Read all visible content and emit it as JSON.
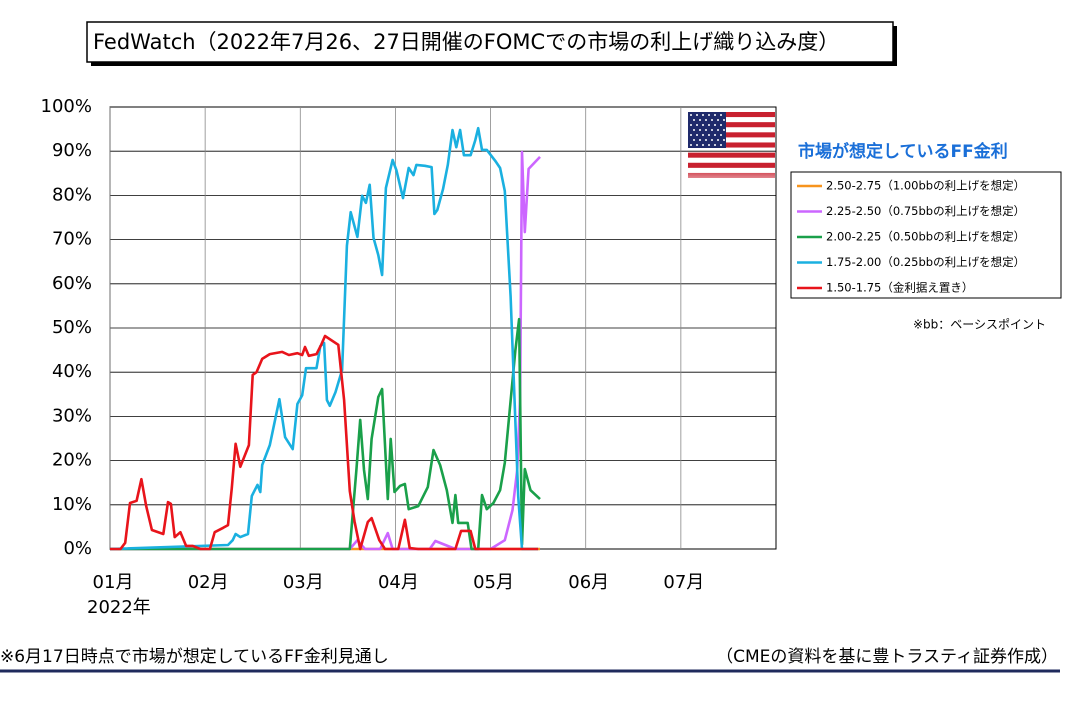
{
  "chart_data": {
    "type": "line",
    "title": "FedWatch（2022年7月26、27日開催のFOMCでの市場の利上げ織り込み度）",
    "legend_title": "市場が想定しているFF金利",
    "legend_note": "※bb：ベーシスポイント",
    "x_year_label": "2022年",
    "footnote": "※6月17日時点で市場が想定しているFF金利見通し",
    "source": "（CMEの資料を基に豊トラスティ証券作成）",
    "xlim": [
      1,
      8
    ],
    "xticks": [
      {
        "value": 1,
        "label": "01月"
      },
      {
        "value": 2,
        "label": "02月"
      },
      {
        "value": 3,
        "label": "03月"
      },
      {
        "value": 4,
        "label": "04月"
      },
      {
        "value": 5,
        "label": "05月"
      },
      {
        "value": 6,
        "label": "06月"
      },
      {
        "value": 7,
        "label": "07月"
      }
    ],
    "ylim": [
      0,
      100
    ],
    "yticks": [
      {
        "value": 0,
        "label": "0%"
      },
      {
        "value": 10,
        "label": "10%"
      },
      {
        "value": 20,
        "label": "20%"
      },
      {
        "value": 30,
        "label": "30%"
      },
      {
        "value": 40,
        "label": "40%"
      },
      {
        "value": 50,
        "label": "50%"
      },
      {
        "value": 60,
        "label": "60%"
      },
      {
        "value": 70,
        "label": "70%"
      },
      {
        "value": 80,
        "label": "80%"
      },
      {
        "value": 90,
        "label": "90%"
      },
      {
        "value": 100,
        "label": "100%"
      }
    ],
    "grid": true,
    "legend": "right",
    "series": [
      {
        "name": "2.50-2.75（1.00bbの利上げを想定）",
        "color": "#f7941d",
        "x": [
          1.0,
          5.52
        ],
        "values": [
          0,
          0
        ]
      },
      {
        "name": "2.25-2.50（0.75bbの利上げを想定）",
        "color": "#cc66ff",
        "x": [
          1.0,
          3.52,
          3.6,
          3.68,
          3.84,
          3.92,
          3.97,
          4.36,
          4.42,
          4.63,
          5.0,
          5.15,
          5.23,
          5.28,
          5.31,
          5.33,
          5.36,
          5.4,
          5.52
        ],
        "values": [
          0,
          0,
          2.0,
          0,
          0,
          3.6,
          0,
          0,
          1.8,
          0,
          0,
          2.0,
          8.8,
          17.9,
          33.9,
          89.8,
          71.7,
          86.0,
          88.7
        ]
      },
      {
        "name": "2.00-2.25（0.50bbの利上げを想定）",
        "color": "#1aa04a",
        "x": [
          1.0,
          3.52,
          3.59,
          3.63,
          3.67,
          3.71,
          3.75,
          3.82,
          3.86,
          3.92,
          3.95,
          3.99,
          4.05,
          4.1,
          4.14,
          4.24,
          4.34,
          4.4,
          4.47,
          4.54,
          4.6,
          4.63,
          4.66,
          4.76,
          4.8,
          4.87,
          4.91,
          4.96,
          5.03,
          5.1,
          5.15,
          5.21,
          5.26,
          5.3,
          5.33,
          5.36,
          5.42,
          5.52
        ],
        "values": [
          0,
          0,
          17.9,
          29.2,
          17.9,
          11.3,
          24.9,
          34.4,
          36.2,
          11.3,
          24.9,
          12.9,
          14.3,
          14.7,
          9.0,
          9.7,
          14.0,
          22.4,
          19.0,
          13.3,
          5.9,
          12.2,
          5.9,
          5.9,
          0,
          0,
          12.2,
          9.0,
          10.4,
          13.3,
          19.5,
          33.5,
          44.8,
          52.0,
          1,
          18.1,
          13.3,
          11.3
        ]
      },
      {
        "name": "1.75-2.00（0.25bbの利上げを想定）",
        "color": "#1ab0e0",
        "x": [
          1.0,
          2.24,
          2.29,
          2.32,
          2.37,
          2.45,
          2.49,
          2.55,
          2.58,
          2.6,
          2.68,
          2.78,
          2.84,
          2.92,
          2.97,
          3.02,
          3.06,
          3.17,
          3.21,
          3.25,
          3.28,
          3.31,
          3.37,
          3.44,
          3.49,
          3.53,
          3.6,
          3.65,
          3.69,
          3.73,
          3.77,
          3.82,
          3.86,
          3.9,
          3.97,
          4.01,
          4.08,
          4.14,
          4.19,
          4.22,
          4.31,
          4.38,
          4.41,
          4.44,
          4.5,
          4.55,
          4.6,
          4.64,
          4.68,
          4.72,
          4.79,
          4.84,
          4.87,
          4.91,
          4.96,
          5.05,
          5.1,
          5.15,
          5.21,
          5.25,
          5.29,
          5.33,
          5.5
        ],
        "values": [
          0,
          0.9,
          2.0,
          3.4,
          2.7,
          3.4,
          12.0,
          14.5,
          12.9,
          19.0,
          23.5,
          33.9,
          25.3,
          22.6,
          32.8,
          34.8,
          40.9,
          40.9,
          45.9,
          46.6,
          33.7,
          32.4,
          35.5,
          40.5,
          68.6,
          76.2,
          70.6,
          79.9,
          78.3,
          82.4,
          70.4,
          66.5,
          62.0,
          81.7,
          88.0,
          85.7,
          79.4,
          86.2,
          84.6,
          86.9,
          86.7,
          86.4,
          75.8,
          76.7,
          81.4,
          86.9,
          94.8,
          90.9,
          94.8,
          89.1,
          89.1,
          92.5,
          95.2,
          90.3,
          90.3,
          87.8,
          86.2,
          81.0,
          57.2,
          34.6,
          12.0,
          0,
          0
        ]
      },
      {
        "name": "1.50-1.75（金利据え置き）",
        "color": "#e8141b",
        "x": [
          1.0,
          1.11,
          1.16,
          1.21,
          1.28,
          1.33,
          1.38,
          1.44,
          1.56,
          1.61,
          1.64,
          1.68,
          1.74,
          1.8,
          1.87,
          1.95,
          2.05,
          2.1,
          2.19,
          2.24,
          2.28,
          2.32,
          2.37,
          2.46,
          2.5,
          2.54,
          2.6,
          2.68,
          2.81,
          2.88,
          2.97,
          3.02,
          3.05,
          3.09,
          3.17,
          3.22,
          3.26,
          3.4,
          3.46,
          3.52,
          3.57,
          3.63,
          3.71,
          3.75,
          3.83,
          3.89,
          4.03,
          4.1,
          4.15,
          4.24,
          4.63,
          4.69,
          4.79,
          4.84,
          5.5
        ],
        "values": [
          0,
          0,
          1.4,
          10.4,
          10.9,
          15.8,
          9.7,
          4.3,
          3.4,
          10.6,
          10.2,
          2.7,
          3.8,
          0.7,
          0.7,
          0,
          0,
          3.8,
          4.8,
          5.4,
          13.8,
          23.8,
          18.6,
          23.5,
          39.4,
          40.0,
          43.0,
          44.1,
          44.6,
          43.9,
          44.3,
          43.9,
          45.7,
          43.7,
          44.1,
          46.2,
          48.2,
          46.2,
          33.7,
          13.1,
          6.3,
          0,
          6.1,
          7.0,
          2.0,
          0,
          0,
          6.6,
          0.2,
          0,
          0,
          4.1,
          4.1,
          0,
          0
        ]
      }
    ]
  }
}
